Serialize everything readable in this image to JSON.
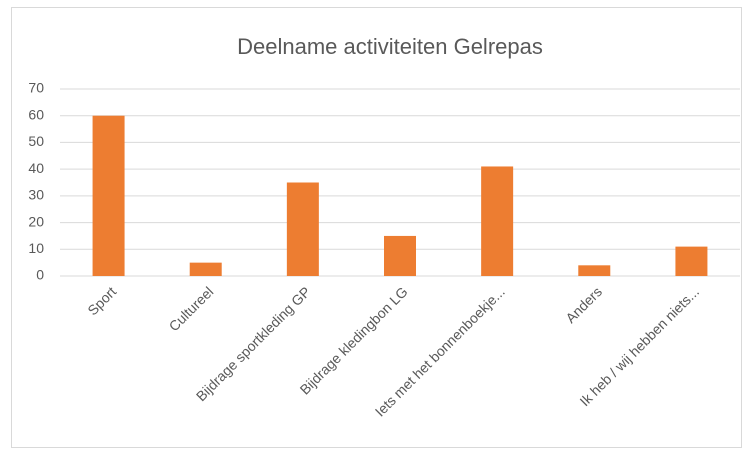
{
  "chart_data": {
    "type": "bar",
    "title": "Deelname activiteiten Gelrepas",
    "categories": [
      "Sport",
      "Cultureel",
      "Bijdrage sportkleding GP",
      "Bijdrage kledingbon LG",
      "Iets met het bonnenboekje...",
      "Anders",
      "Ik heb / wij hebben niets..."
    ],
    "values": [
      60,
      5,
      35,
      15,
      41,
      4,
      11
    ],
    "color": "#ed7d31",
    "ylim": [
      0,
      70
    ],
    "yticks": [
      0,
      10,
      20,
      30,
      40,
      50,
      60,
      70
    ],
    "grid": true
  }
}
